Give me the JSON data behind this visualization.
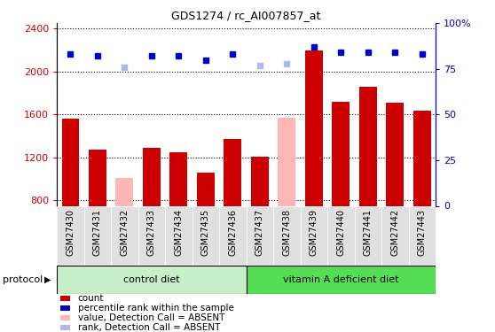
{
  "title": "GDS1274 / rc_AI007857_at",
  "samples": [
    "GSM27430",
    "GSM27431",
    "GSM27432",
    "GSM27433",
    "GSM27434",
    "GSM27435",
    "GSM27436",
    "GSM27437",
    "GSM27438",
    "GSM27439",
    "GSM27440",
    "GSM27441",
    "GSM27442",
    "GSM27443"
  ],
  "bar_values": [
    1560,
    1270,
    null,
    1290,
    1250,
    1060,
    1370,
    1210,
    null,
    2200,
    1720,
    1860,
    1710,
    1640
  ],
  "bar_absent_values": [
    null,
    null,
    1010,
    null,
    null,
    null,
    null,
    null,
    1570,
    null,
    null,
    null,
    null,
    null
  ],
  "dot_values_rank": [
    83,
    82,
    null,
    82,
    82,
    80,
    83,
    null,
    null,
    87,
    84,
    84,
    84,
    83
  ],
  "dot_absent_rank": [
    null,
    null,
    76,
    null,
    null,
    null,
    null,
    77,
    78,
    null,
    null,
    null,
    null,
    null
  ],
  "bar_color": "#cc0000",
  "bar_absent_color": "#ffb6b6",
  "dot_color": "#0000cc",
  "dot_absent_color": "#b0b8e8",
  "ylim_left": [
    750,
    2450
  ],
  "ylim_right": [
    0,
    100
  ],
  "yticks_left": [
    800,
    1200,
    1600,
    2000,
    2400
  ],
  "yticks_right": [
    0,
    25,
    50,
    75,
    100
  ],
  "group1_label": "control diet",
  "group2_label": "vitamin A deficient diet",
  "protocol_label": "protocol",
  "legend_items": [
    {
      "color": "#cc0000",
      "label": "count"
    },
    {
      "color": "#0000cc",
      "label": "percentile rank within the sample"
    },
    {
      "color": "#ffb6b6",
      "label": "value, Detection Call = ABSENT"
    },
    {
      "color": "#b0b8e8",
      "label": "rank, Detection Call = ABSENT"
    }
  ],
  "group1_bg": "#c8f0c8",
  "group2_bg": "#55dd55",
  "xtick_bg": "#e0e0e0",
  "n_group1": 7,
  "n_group2": 7
}
